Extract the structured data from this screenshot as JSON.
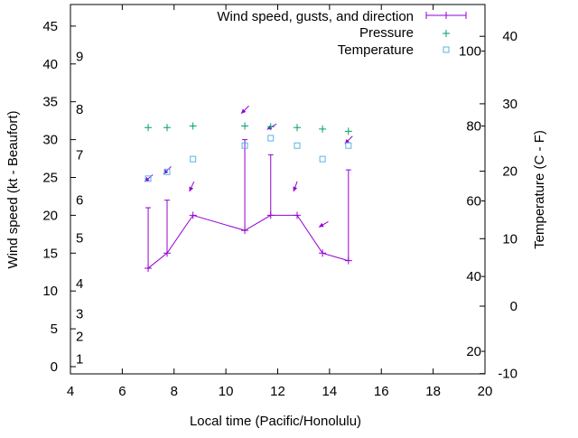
{
  "chart_data": {
    "type": "line",
    "xlabel": "Local time (Pacific/Honolulu)",
    "ylabel": "Wind speed (kt - Beaufort)",
    "y2label": "Temperature (C - F)",
    "xlim": [
      4,
      20
    ],
    "ylim": [
      -1,
      48
    ],
    "y2lim": [
      -10,
      45
    ],
    "x_ticks": [
      4,
      6,
      8,
      10,
      12,
      14,
      16,
      18,
      20
    ],
    "y_ticks": [
      0,
      5,
      10,
      15,
      20,
      25,
      30,
      35,
      40,
      45
    ],
    "y2_ticks": [
      -10,
      0,
      10,
      20,
      30,
      40
    ],
    "fahrenheit_labels": [
      {
        "label": "20",
        "celsius": -6.7
      },
      {
        "label": "40",
        "celsius": 4.4
      },
      {
        "label": "60",
        "celsius": 15.6
      },
      {
        "label": "80",
        "celsius": 26.7
      },
      {
        "label": "100",
        "celsius": 37.8
      }
    ],
    "beaufort_labels": [
      {
        "label": "1",
        "kt": 1
      },
      {
        "label": "2",
        "kt": 4
      },
      {
        "label": "3",
        "kt": 7
      },
      {
        "label": "4",
        "kt": 11
      },
      {
        "label": "5",
        "kt": 17
      },
      {
        "label": "6",
        "kt": 22
      },
      {
        "label": "7",
        "kt": 28
      },
      {
        "label": "8",
        "kt": 34
      },
      {
        "label": "9",
        "kt": 41
      }
    ],
    "legend": {
      "position": "top-right",
      "entries": [
        "Wind speed, gusts, and direction",
        "Pressure",
        "Temperature"
      ]
    },
    "colors": {
      "wind": "#9400d3",
      "pressure": "#009e73",
      "temperature": "#56b4e9"
    },
    "series": [
      {
        "name": "Wind speed, gusts, and direction",
        "x": [
          7.0,
          7.73,
          8.73,
          10.73,
          11.73,
          12.75,
          13.73,
          14.73
        ],
        "speed": [
          13,
          15,
          20,
          18,
          20,
          20,
          15,
          14
        ],
        "gust": [
          21,
          22,
          20,
          30,
          28,
          20,
          15,
          26
        ],
        "direction_marker_y": [
          24.8,
          25.8,
          23.5,
          33.8,
          31.7,
          23.5,
          18.8,
          29.8
        ],
        "direction_deg": [
          50,
          45,
          25,
          45,
          60,
          20,
          60,
          45
        ]
      },
      {
        "name": "Pressure",
        "x": [
          7.0,
          7.73,
          8.73,
          10.73,
          11.73,
          12.75,
          13.73,
          14.73
        ],
        "plot_y": [
          31.6,
          31.6,
          31.8,
          31.8,
          31.7,
          31.6,
          31.4,
          31.1
        ]
      },
      {
        "name": "Temperature",
        "x": [
          7.0,
          7.73,
          8.73,
          10.73,
          11.73,
          12.75,
          13.73,
          14.73
        ],
        "celsius": [
          18.9,
          19.9,
          21.8,
          23.8,
          24.9,
          23.8,
          21.8,
          23.8
        ]
      }
    ]
  }
}
